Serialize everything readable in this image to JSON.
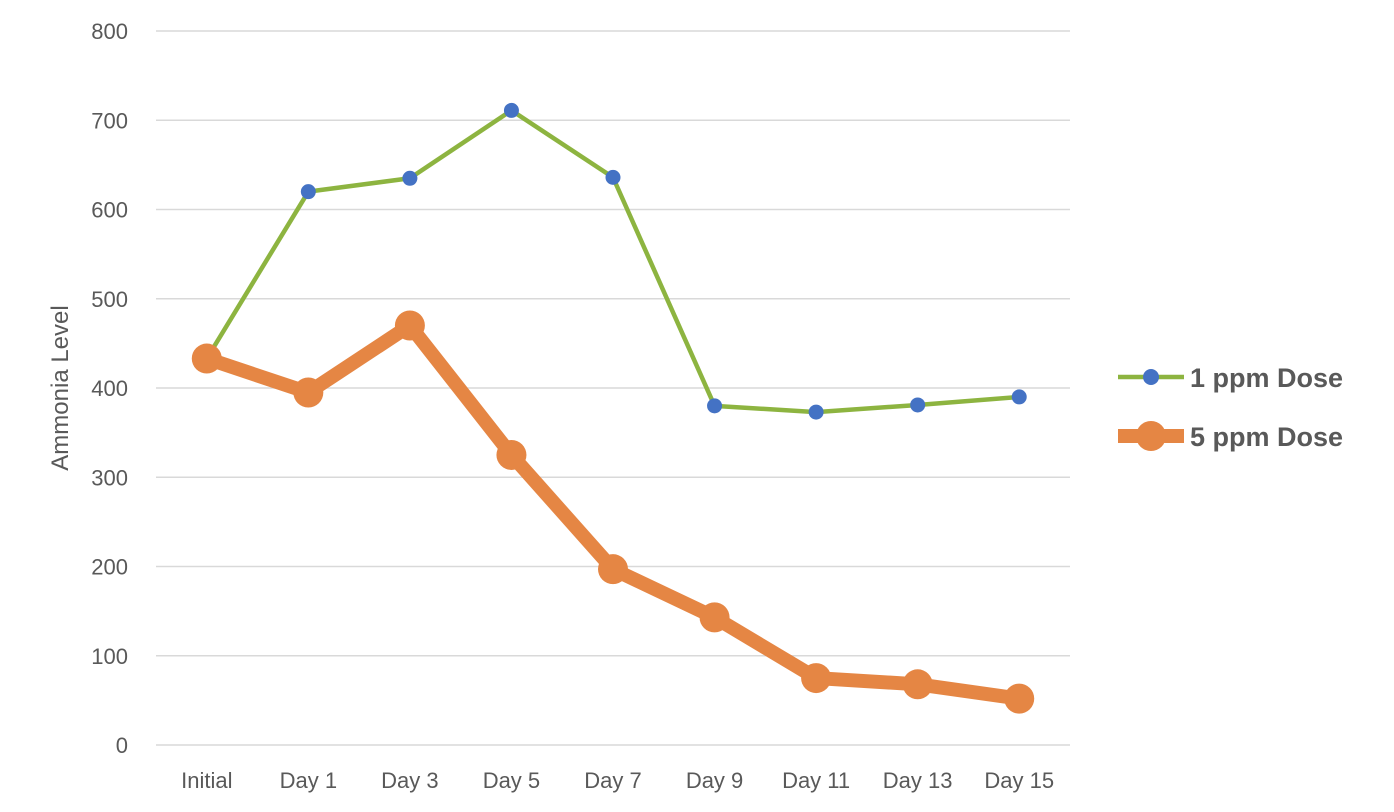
{
  "chart_data": {
    "type": "line",
    "title": "",
    "xlabel": "",
    "ylabel": "Ammonia Level",
    "ylim": [
      0,
      800
    ],
    "yticks": [
      0,
      100,
      200,
      300,
      400,
      500,
      600,
      700,
      800
    ],
    "grid": true,
    "legend_position": "right",
    "categories": [
      "Initial",
      "Day 1",
      "Day 3",
      "Day 5",
      "Day 7",
      "Day 9",
      "Day 11",
      "Day 13",
      "Day 15"
    ],
    "series": [
      {
        "name": "1 ppm Dose",
        "values": [
          433,
          620,
          635,
          711,
          636,
          380,
          373,
          381,
          390
        ],
        "line_color": "#8db440",
        "marker_color": "#4472c4"
      },
      {
        "name": "5 ppm Dose",
        "values": [
          433,
          395,
          470,
          325,
          197,
          143,
          75,
          68,
          52
        ],
        "line_color": "#e58644",
        "marker_color": "#e58644"
      }
    ]
  }
}
